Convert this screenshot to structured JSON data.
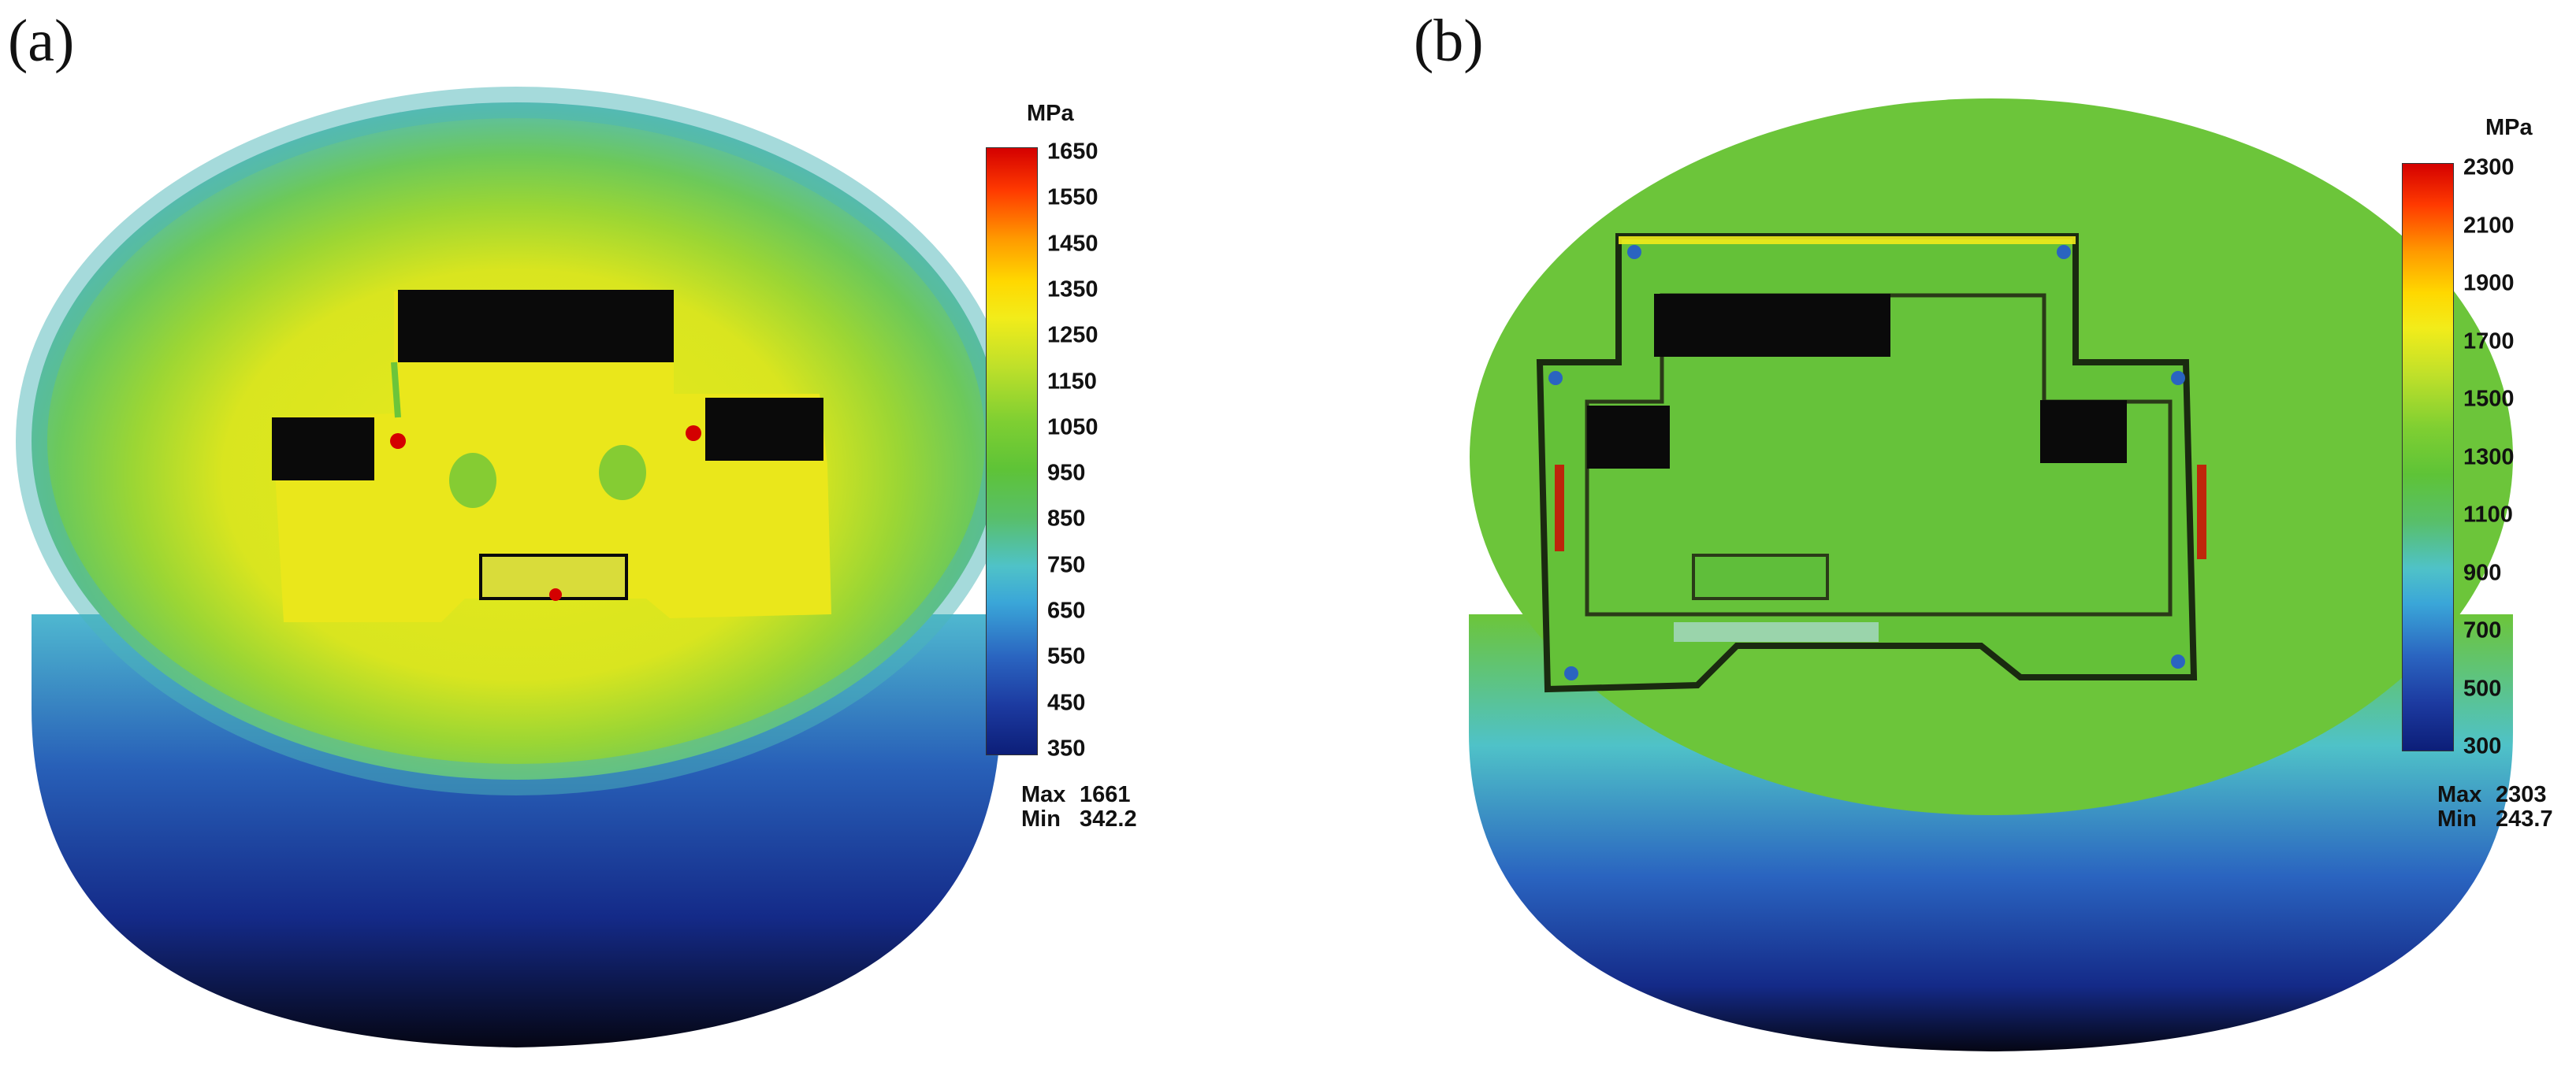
{
  "panels": [
    {
      "label": "(a)",
      "unit": "MPa",
      "ticks": [
        "1650",
        "1550",
        "1450",
        "1350",
        "1250",
        "1150",
        "1050",
        "950",
        "850",
        "750",
        "650",
        "550",
        "450",
        "350"
      ],
      "max_label": "Max",
      "max_value": "1661",
      "min_label": "Min",
      "min_value": "342.2"
    },
    {
      "label": "(b)",
      "unit": "MPa",
      "ticks": [
        "2300",
        "2100",
        "1900",
        "1700",
        "1500",
        "1300",
        "1100",
        "900",
        "700",
        "500",
        "300"
      ],
      "max_label": "Max",
      "max_value": "2303",
      "min_label": "Min",
      "min_value": "243.7"
    }
  ],
  "colors": {
    "high": "#d40000",
    "yellow": "#f2ec1a",
    "green": "#6cc53a",
    "cyan": "#4fc2c8",
    "blue": "#1c3aa0",
    "dark": "#0a0a20"
  }
}
